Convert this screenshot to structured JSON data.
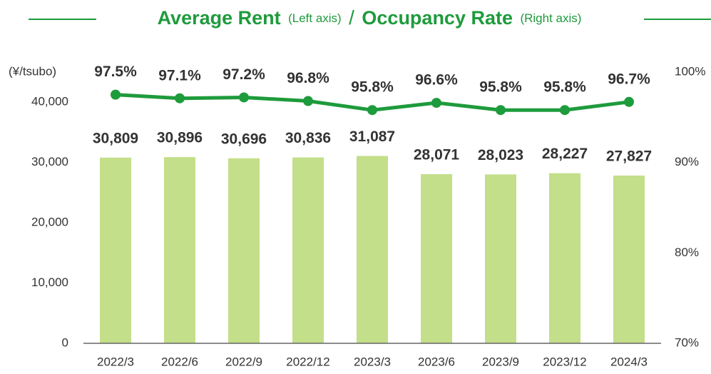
{
  "chart_data": {
    "type": "bar_line",
    "title_parts": [
      "Average Rent",
      "(Left axis)",
      "/",
      "Occupancy Rate",
      "(Right axis)"
    ],
    "y_unit": "(¥/tsubo)",
    "categories": [
      "2022/3",
      "2022/6",
      "2022/9",
      "2022/12",
      "2023/3",
      "2023/6",
      "2023/9",
      "2023/12",
      "2024/3"
    ],
    "series": [
      {
        "name": "Average Rent",
        "type": "bar",
        "color": "#c3df8a",
        "values": [
          30809,
          30896,
          30696,
          30836,
          31087,
          28071,
          28023,
          28227,
          27827
        ],
        "value_labels": [
          "30,809",
          "30,896",
          "30,696",
          "30,836",
          "31,087",
          "28,071",
          "28,023",
          "28,227",
          "27,827"
        ]
      },
      {
        "name": "Occupancy Rate",
        "type": "line",
        "axis": "y2",
        "color": "#1e9b3c",
        "values": [
          97.5,
          97.1,
          97.2,
          96.8,
          95.8,
          96.6,
          95.8,
          95.8,
          96.7
        ],
        "value_labels": [
          "97.5%",
          "97.1%",
          "97.2%",
          "96.8%",
          "95.8%",
          "96.6%",
          "95.8%",
          "95.8%",
          "96.7%"
        ]
      }
    ],
    "ylim": [
      0,
      45000
    ],
    "yticks": [
      0,
      {
        "value": 10000,
        "label": "10,000"
      },
      {
        "value": 20000,
        "label": "20,000"
      },
      {
        "value": 30000,
        "label": "30,000"
      },
      {
        "value": 40000,
        "label": "40,000"
      }
    ],
    "y2lim": [
      70,
      100
    ],
    "y2ticks": [
      {
        "value": 70,
        "label": "70%"
      },
      {
        "value": 80,
        "label": "80%"
      },
      {
        "value": 90,
        "label": "90%"
      },
      {
        "value": 100,
        "label": "100%"
      }
    ]
  }
}
